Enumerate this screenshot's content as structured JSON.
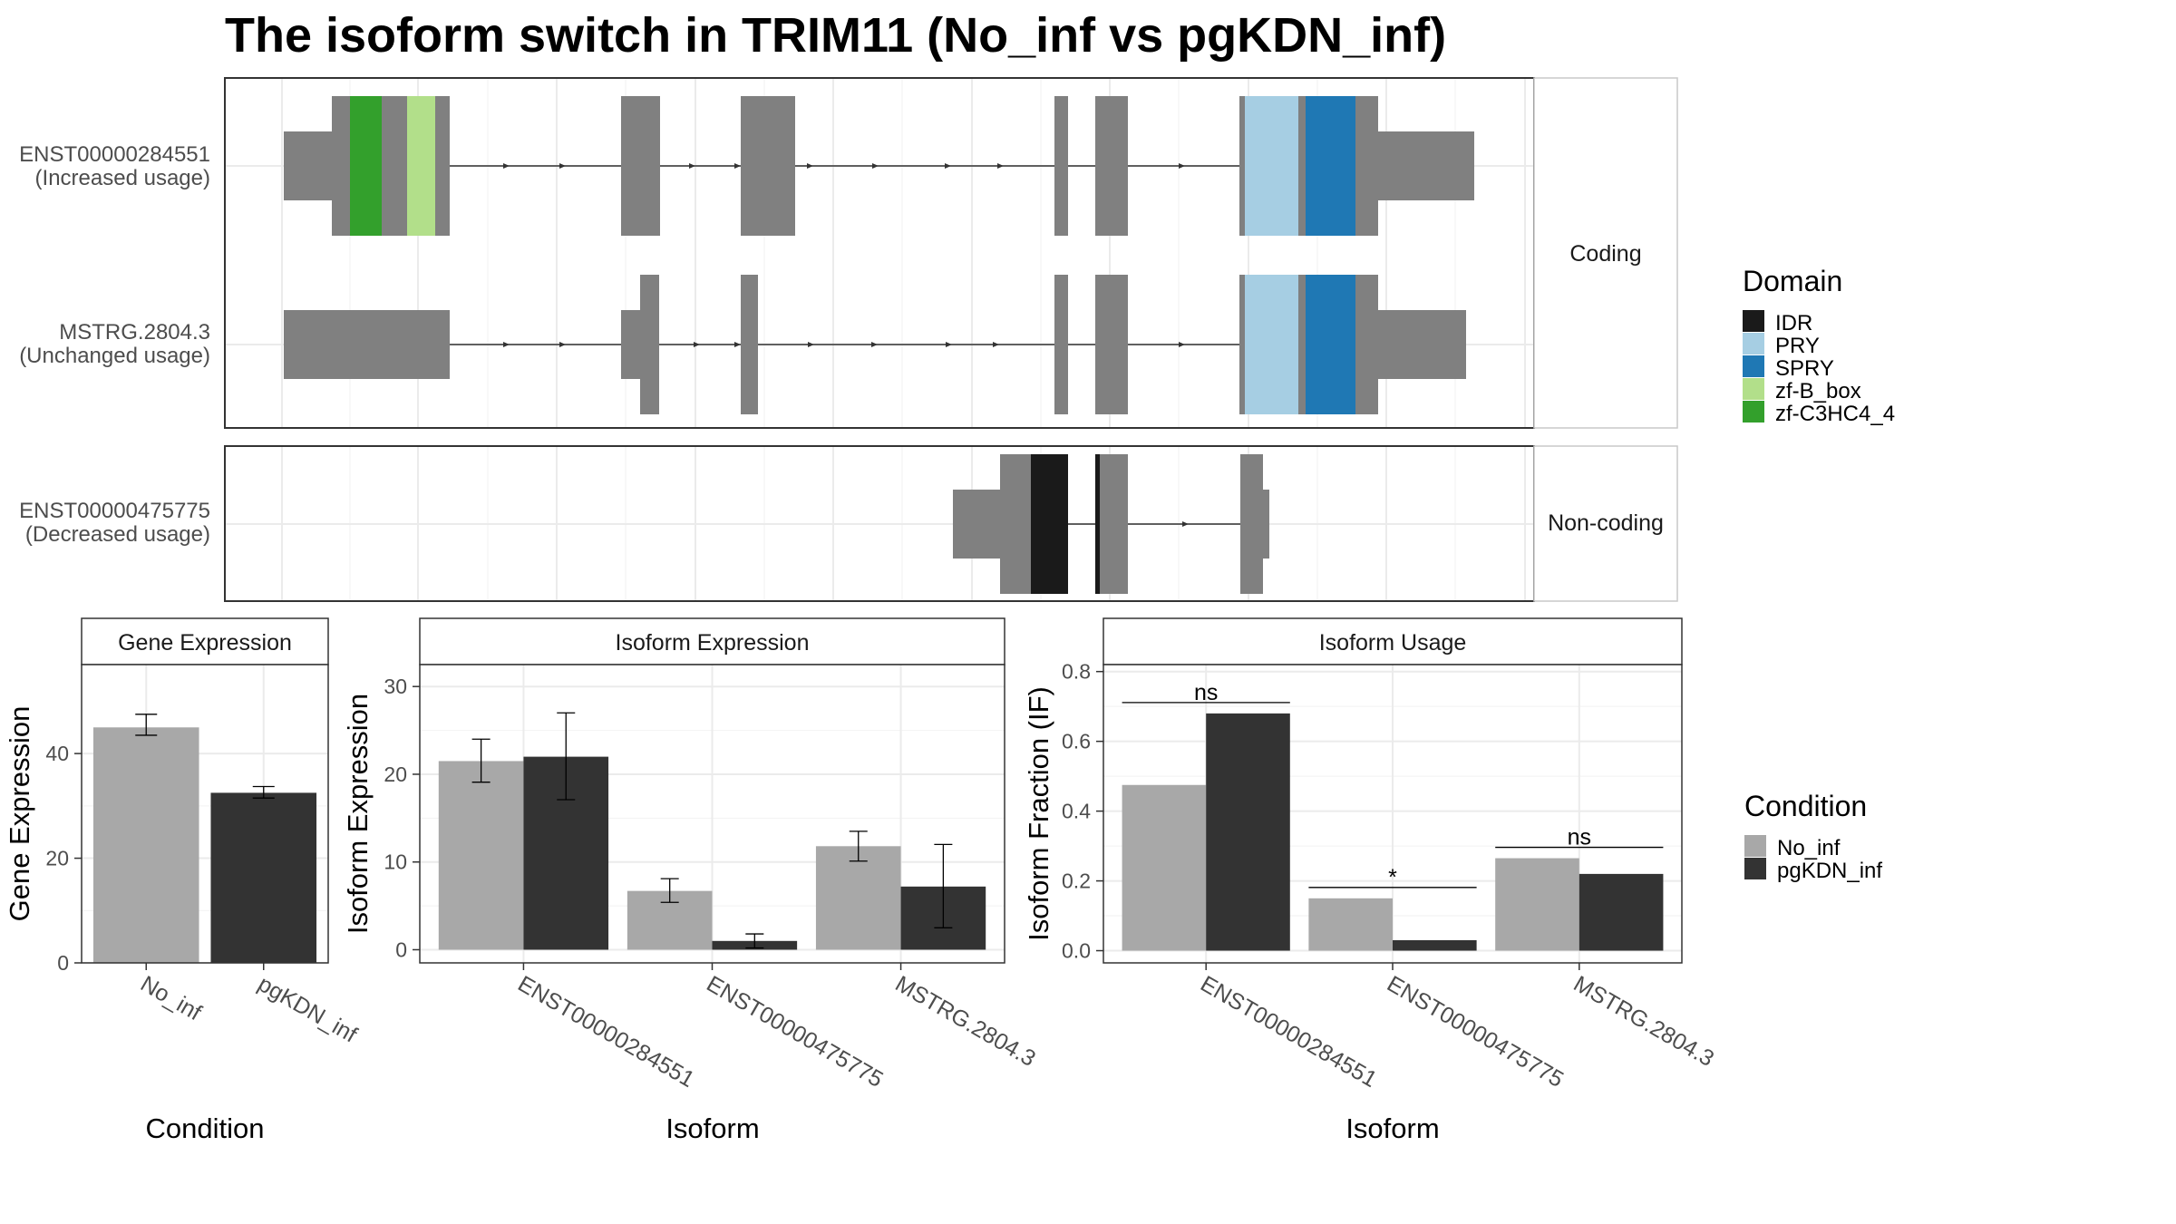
{
  "title": "The isoform switch in TRIM11 (No_inf vs pgKDN_inf)",
  "colors": {
    "exon": "#808080",
    "IDR": "#1a1a1a",
    "PRY": "#a6cee3",
    "SPRY": "#1f78b4",
    "zf-B_box": "#b2df8a",
    "zf-C3HC4_4": "#33a02c",
    "No_inf": "#a8a8a8",
    "pgKDN_inf": "#333333"
  },
  "facets": {
    "coding": "Coding",
    "noncoding": "Non-coding"
  },
  "isoforms": [
    {
      "id": "ENST00000284551",
      "usage": "(Increased usage)"
    },
    {
      "id": "MSTRG.2804.3",
      "usage": "(Unchanged usage)"
    },
    {
      "id": "ENST00000475775",
      "usage": "(Decreased usage)"
    }
  ],
  "domain_legend": {
    "title": "Domain",
    "items": [
      {
        "label": "IDR",
        "color": "#1a1a1a"
      },
      {
        "label": "PRY",
        "color": "#a6cee3"
      },
      {
        "label": "SPRY",
        "color": "#1f78b4"
      },
      {
        "label": "zf-B_box",
        "color": "#b2df8a"
      },
      {
        "label": "zf-C3HC4_4",
        "color": "#33a02c"
      }
    ]
  },
  "condition_legend": {
    "title": "Condition",
    "items": [
      {
        "label": "No_inf",
        "color": "#a8a8a8"
      },
      {
        "label": "pgKDN_inf",
        "color": "#333333"
      }
    ]
  },
  "chart_data": [
    {
      "type": "bar",
      "strip": "Gene Expression",
      "xlabel": "Condition",
      "ylabel": "Gene Expression",
      "categories": [
        "No_inf",
        "pgKDN_inf"
      ],
      "values": [
        45,
        32.5
      ],
      "error_low": [
        43.5,
        31.5
      ],
      "error_high": [
        47.5,
        33.7
      ],
      "ylim": [
        0,
        57
      ],
      "yticks": [
        0,
        20,
        40
      ]
    },
    {
      "type": "bar",
      "strip": "Isoform Expression",
      "xlabel": "Isoform",
      "ylabel": "Isoform Expression",
      "categories": [
        "ENST00000284551",
        "ENST00000475775",
        "MSTRG.2804.3"
      ],
      "series": [
        {
          "name": "No_inf",
          "values": [
            21.5,
            6.7,
            11.8
          ],
          "error_low": [
            19.1,
            5.4,
            10.1
          ],
          "error_high": [
            24.0,
            8.1,
            13.5
          ]
        },
        {
          "name": "pgKDN_inf",
          "values": [
            22.0,
            1.0,
            7.2
          ],
          "error_low": [
            17.1,
            0.2,
            2.5
          ],
          "error_high": [
            27.0,
            1.8,
            12.0
          ]
        }
      ],
      "ylim": [
        -1.5,
        32.5
      ],
      "yticks": [
        0,
        10,
        20,
        30
      ]
    },
    {
      "type": "bar",
      "strip": "Isoform Usage",
      "xlabel": "Isoform",
      "ylabel": "Isoform Fraction (IF)",
      "categories": [
        "ENST00000284551",
        "ENST00000475775",
        "MSTRG.2804.3"
      ],
      "series": [
        {
          "name": "No_inf",
          "values": [
            0.475,
            0.15,
            0.265
          ]
        },
        {
          "name": "pgKDN_inf",
          "values": [
            0.68,
            0.03,
            0.22
          ]
        }
      ],
      "significance": [
        "ns",
        "*",
        "ns"
      ],
      "ylim": [
        -0.035,
        0.82
      ],
      "yticks": [
        0.0,
        0.2,
        0.4,
        0.6,
        0.8
      ]
    }
  ]
}
